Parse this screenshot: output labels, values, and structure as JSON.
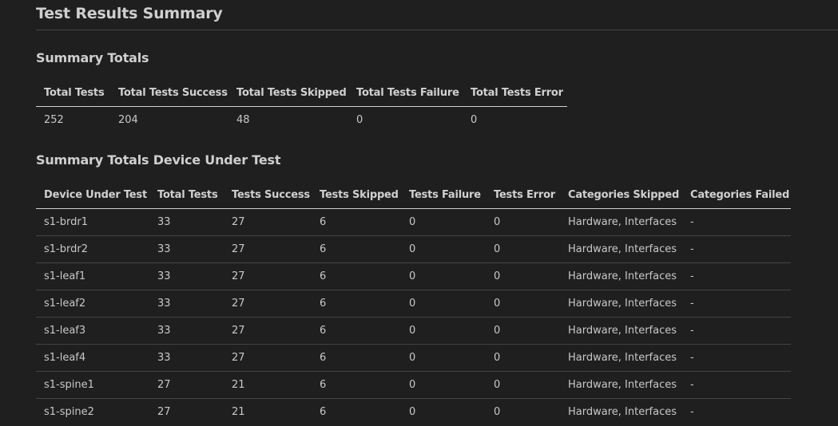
{
  "title": "Test Results Summary",
  "summary_totals": {
    "heading": "Summary Totals",
    "headers": [
      "Total Tests",
      "Total Tests Success",
      "Total Tests Skipped",
      "Total Tests Failure",
      "Total Tests Error"
    ],
    "row": [
      "252",
      "204",
      "48",
      "0",
      "0"
    ]
  },
  "summary_dut": {
    "heading": "Summary Totals Device Under Test",
    "headers": [
      "Device Under Test",
      "Total Tests",
      "Tests Success",
      "Tests Skipped",
      "Tests Failure",
      "Tests Error",
      "Categories Skipped",
      "Categories Failed"
    ],
    "rows": [
      [
        "s1-brdr1",
        "33",
        "27",
        "6",
        "0",
        "0",
        "Hardware, Interfaces",
        "-"
      ],
      [
        "s1-brdr2",
        "33",
        "27",
        "6",
        "0",
        "0",
        "Hardware, Interfaces",
        "-"
      ],
      [
        "s1-leaf1",
        "33",
        "27",
        "6",
        "0",
        "0",
        "Hardware, Interfaces",
        "-"
      ],
      [
        "s1-leaf2",
        "33",
        "27",
        "6",
        "0",
        "0",
        "Hardware, Interfaces",
        "-"
      ],
      [
        "s1-leaf3",
        "33",
        "27",
        "6",
        "0",
        "0",
        "Hardware, Interfaces",
        "-"
      ],
      [
        "s1-leaf4",
        "33",
        "27",
        "6",
        "0",
        "0",
        "Hardware, Interfaces",
        "-"
      ],
      [
        "s1-spine1",
        "27",
        "21",
        "6",
        "0",
        "0",
        "Hardware, Interfaces",
        "-"
      ],
      [
        "s1-spine2",
        "27",
        "21",
        "6",
        "0",
        "0",
        "Hardware, Interfaces",
        "-"
      ]
    ]
  }
}
